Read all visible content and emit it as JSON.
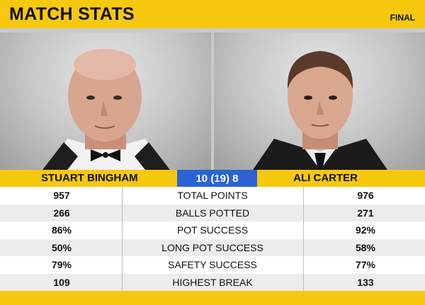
{
  "header": {
    "title": "MATCH STATS",
    "stage": "FINAL"
  },
  "players": {
    "left": {
      "name": "STUART BINGHAM"
    },
    "right": {
      "name": "ALI CARTER"
    }
  },
  "score": "10 (19) 8",
  "stats": [
    {
      "p1": "957",
      "label": "TOTAL POINTS",
      "p2": "976"
    },
    {
      "p1": "266",
      "label": "BALLS POTTED",
      "p2": "271"
    },
    {
      "p1": "86%",
      "label": "POT SUCCESS",
      "p2": "92%"
    },
    {
      "p1": "50%",
      "label": "LONG POT SUCCESS",
      "p2": "58%"
    },
    {
      "p1": "79%",
      "label": "SAFETY SUCCESS",
      "p2": "77%"
    },
    {
      "p1": "109",
      "label": "HIGHEST BREAK",
      "p2": "133"
    }
  ],
  "colors": {
    "accent": "#f6c90e",
    "score_bg": "#2b63d6"
  }
}
